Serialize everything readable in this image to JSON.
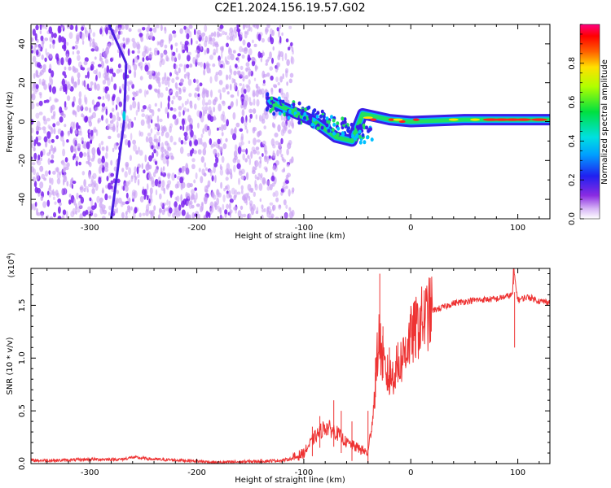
{
  "title": "C2E1.2024.156.19.57.G02",
  "colors": {
    "snr_line": "#ee3333",
    "scatter_violet": "#7a22ee",
    "scatter_light": "#c9a0f4",
    "axis": "#000000"
  },
  "chart_data": [
    {
      "type": "heatmap",
      "xlabel": "Height of straight line (km)",
      "ylabel": "Frequency (Hz)",
      "xlim": [
        -355,
        130
      ],
      "ylim": [
        -50,
        50
      ],
      "x_ticks": [
        -300,
        -200,
        -100,
        0,
        100
      ],
      "y_ticks": [
        -40,
        -20,
        0,
        20,
        40
      ],
      "colorbar": {
        "label": "Normalized spectral amplitude",
        "range": [
          0.0,
          1.0
        ],
        "ticks": [
          0.0,
          0.2,
          0.4,
          0.6,
          0.8
        ],
        "colormap": "rainbow (white-violet-blue-cyan-green-yellow-red-magenta)"
      },
      "features": {
        "diffuse_region_x": [
          -355,
          -110
        ],
        "diagonal_streak": {
          "x_at_top": -282,
          "x_at_bottom": -280,
          "x_mid": -268,
          "y_top": 50,
          "y_bottom": -50
        },
        "carrier_track": [
          {
            "x": -130,
            "y": 10
          },
          {
            "x": -90,
            "y": 0
          },
          {
            "x": -70,
            "y": -8
          },
          {
            "x": -55,
            "y": -10
          },
          {
            "x": -45,
            "y": 4
          },
          {
            "x": -20,
            "y": 1
          },
          {
            "x": 0,
            "y": 0
          },
          {
            "x": 50,
            "y": 1
          },
          {
            "x": 100,
            "y": 1
          },
          {
            "x": 130,
            "y": 1
          }
        ]
      },
      "grid": false
    },
    {
      "type": "line",
      "xlabel": "Height of straight line (km)",
      "ylabel": "SNR (10 * v/v)",
      "y_multiplier": "(x10",
      "y_multiplier_exp": "4",
      "y_multiplier_close": ")",
      "xlim": [
        -355,
        130
      ],
      "ylim": [
        0,
        1.85
      ],
      "x_ticks": [
        -300,
        -200,
        -100,
        0,
        100
      ],
      "y_ticks": [
        0.0,
        0.5,
        1.0,
        1.5
      ],
      "series": [
        {
          "x": [
            -355,
            -330,
            -300,
            -270,
            -260,
            -240,
            -210,
            -180,
            -150,
            -120,
            -110,
            -100,
            -90,
            -80,
            -70,
            -60,
            -50,
            -40,
            -35,
            -30,
            -25,
            -20,
            -10,
            0,
            10,
            20,
            30,
            40,
            60,
            80,
            95,
            96,
            100,
            110,
            120,
            130
          ],
          "values": [
            0.03,
            0.03,
            0.04,
            0.04,
            0.06,
            0.04,
            0.03,
            0.01,
            0.02,
            0.03,
            0.05,
            0.1,
            0.25,
            0.35,
            0.3,
            0.2,
            0.15,
            0.1,
            0.5,
            1.2,
            0.9,
            0.8,
            0.95,
            1.2,
            1.35,
            1.45,
            1.48,
            1.52,
            1.55,
            1.56,
            1.6,
            1.85,
            1.55,
            1.58,
            1.54,
            1.53
          ],
          "spikes": [
            {
              "x": -92,
              "y": 0.35
            },
            {
              "x": -85,
              "y": 0.45
            },
            {
              "x": -72,
              "y": 0.6
            },
            {
              "x": -65,
              "y": 0.5
            },
            {
              "x": -55,
              "y": 0.4
            },
            {
              "x": -40,
              "y": 0.5
            },
            {
              "x": -33,
              "y": 1.0
            },
            {
              "x": -29,
              "y": 1.8
            },
            {
              "x": -26,
              "y": 1.3
            },
            {
              "x": -20,
              "y": 1.1
            },
            {
              "x": -12,
              "y": 1.15
            },
            {
              "x": -5,
              "y": 1.2
            },
            {
              "x": 96,
              "y": 1.85
            },
            {
              "x": 97,
              "y": 1.1
            }
          ]
        }
      ],
      "grid": false
    }
  ]
}
